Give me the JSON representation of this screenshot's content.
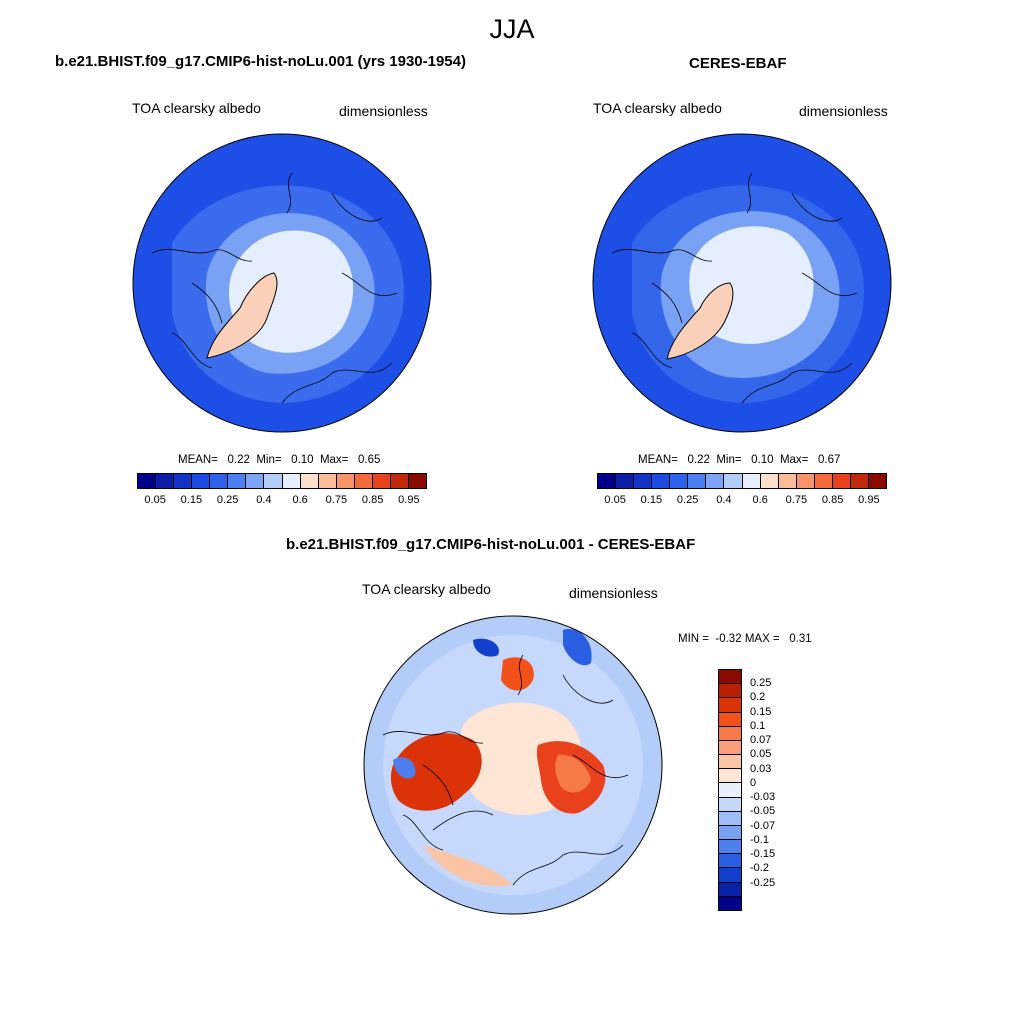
{
  "title": "JJA",
  "panels": [
    {
      "id": "model",
      "title": "b.e21.BHIST.f09_g17.CMIP6-hist-noLu.001 (yrs 1930-1954)",
      "variable": "TOA clearsky albedo",
      "units": "dimensionless",
      "stats": {
        "mean_label": "MEAN=",
        "mean": "0.22",
        "min_label": "Min=",
        "min": "0.10",
        "max_label": "Max=",
        "max": "0.65"
      }
    },
    {
      "id": "obs",
      "title": "CERES-EBAF",
      "variable": "TOA clearsky albedo",
      "units": "dimensionless",
      "stats": {
        "mean_label": "MEAN=",
        "mean": "0.22",
        "min_label": "Min=",
        "min": "0.10",
        "max_label": "Max=",
        "max": "0.67"
      }
    },
    {
      "id": "diff",
      "title": "b.e21.BHIST.f09_g17.CMIP6-hist-noLu.001 - CERES-EBAF",
      "variable": "TOA clearsky albedo",
      "units": "dimensionless",
      "stats": {
        "min_label": "MIN =",
        "min": "-0.32",
        "max_label": "MAX =",
        "max": "0.31"
      }
    }
  ],
  "colorbar_main": {
    "colors": [
      "#00008b",
      "#0a1ea8",
      "#1233c6",
      "#1b4be0",
      "#2d63ec",
      "#4c7ff2",
      "#7ea4f6",
      "#b4ccf8",
      "#e6efff",
      "#fde0cc",
      "#fbbc9a",
      "#f99468",
      "#f56a3a",
      "#e8411b",
      "#c02a0a",
      "#8b0a00"
    ],
    "labels": [
      "0.05",
      "0.15",
      "0.25",
      "0.4",
      "0.6",
      "0.75",
      "0.85",
      "0.95"
    ]
  },
  "colorbar_diff": {
    "colors": [
      "#8b0a00",
      "#b81f05",
      "#dc3208",
      "#f2521a",
      "#f57a48",
      "#f89e7a",
      "#fbc4a5",
      "#fde6d6",
      "#e9f1ff",
      "#c6d8fb",
      "#9fbdf6",
      "#7aa0f2",
      "#4f7fec",
      "#2a5fe3",
      "#1240cc",
      "#0a22a8",
      "#00008b"
    ],
    "labels": [
      "0.25",
      "0.2",
      "0.15",
      "0.1",
      "0.07",
      "0.05",
      "0.03",
      "0",
      "-0.03",
      "-0.05",
      "-0.07",
      "-0.1",
      "-0.15",
      "-0.2",
      "-0.25"
    ]
  }
}
